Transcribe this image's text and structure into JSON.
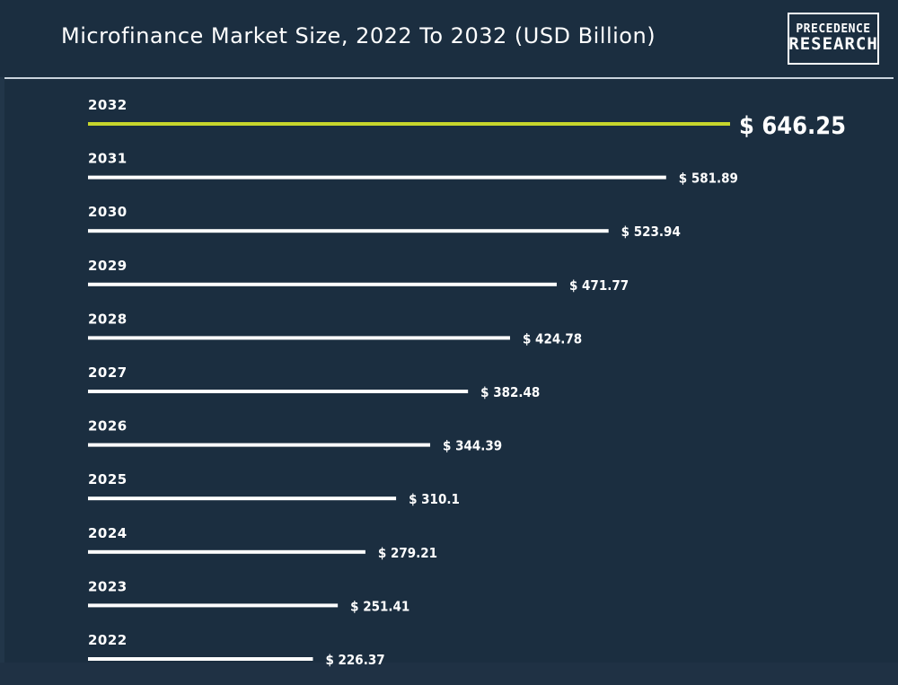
{
  "header": {
    "title": "Microfinance Market Size, 2022 To 2032 (USD Billion)",
    "logo_line1": "PRECEDENCE",
    "logo_line2": "RESEARCH"
  },
  "colors": {
    "background": "#1b2e40",
    "bar": "#ffffff",
    "highlight": "#c7d62c",
    "text": "#ffffff"
  },
  "chart_data": {
    "type": "bar",
    "orientation": "horizontal",
    "title": "Microfinance Market Size, 2022 To 2032 (USD Billion)",
    "categories": [
      "2032",
      "2031",
      "2030",
      "2029",
      "2028",
      "2027",
      "2026",
      "2025",
      "2024",
      "2023",
      "2022"
    ],
    "values": [
      646.25,
      581.89,
      523.94,
      471.77,
      424.78,
      382.48,
      344.39,
      310.1,
      279.21,
      251.41,
      226.37
    ],
    "value_labels": [
      "$ 646.25",
      "$ 581.89",
      "$ 523.94",
      "$ 471.77",
      "$ 424.78",
      "$ 382.48",
      "$ 344.39",
      "$ 310.1",
      "$ 279.21",
      "$ 251.41",
      "$ 226.37"
    ],
    "highlight_category": "2032",
    "xlabel": "",
    "ylabel": "",
    "grid": false,
    "legend": "none"
  }
}
